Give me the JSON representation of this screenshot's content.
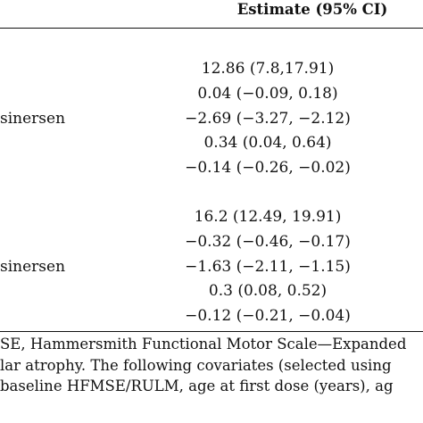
{
  "table": {
    "header": "Estimate (95% CI)",
    "group1": {
      "rows": [
        {
          "label": "",
          "estimate": "12.86 (7.8,17.91)"
        },
        {
          "label": "",
          "estimate": "0.04 (−0.09, 0.18)"
        },
        {
          "label": "sinersen",
          "estimate": "−2.69 (−3.27, −2.12)"
        },
        {
          "label": "",
          "estimate": "0.34 (0.04, 0.64)"
        },
        {
          "label": "",
          "estimate": "−0.14 (−0.26, −0.02)"
        }
      ]
    },
    "group2": {
      "rows": [
        {
          "label": "",
          "estimate": "16.2 (12.49, 19.91)"
        },
        {
          "label": "",
          "estimate": "−0.32 (−0.46, −0.17)"
        },
        {
          "label": "sinersen",
          "estimate": "−1.63 (−2.11, −1.15)"
        },
        {
          "label": "",
          "estimate": "0.3 (0.08, 0.52)"
        },
        {
          "label": "",
          "estimate": "−0.12 (−0.21, −0.04)"
        }
      ]
    }
  },
  "footnote": {
    "line1": "SE, Hammersmith Functional Motor Scale—Expanded",
    "line2": "lar atrophy. The following covariates (selected using",
    "line3": "baseline HFMSE/RULM, age at first dose (years), ag"
  }
}
